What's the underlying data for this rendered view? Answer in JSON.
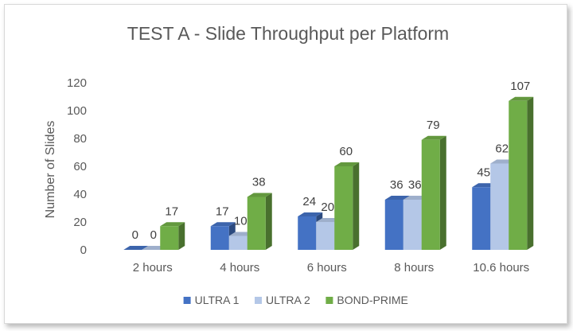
{
  "chart_data": {
    "type": "bar",
    "title": "TEST A - Slide Throughput per Platform",
    "xlabel": "",
    "ylabel": "Number of Slides",
    "categories": [
      "2 hours",
      "4 hours",
      "6 hours",
      "8 hours",
      "10.6 hours"
    ],
    "yticks": [
      "0",
      "20",
      "40",
      "60",
      "80",
      "100",
      "120"
    ],
    "ylim": [
      0,
      120
    ],
    "grid": false,
    "legend_position": "bottom",
    "series": [
      {
        "name": "ULTRA 1",
        "color": "#4472c4",
        "values": [
          0,
          17,
          24,
          36,
          45
        ],
        "labels": [
          "0",
          "17",
          "24",
          "36",
          "45"
        ]
      },
      {
        "name": "ULTRA 2",
        "color": "#b4c7e7",
        "values": [
          0,
          10,
          20,
          36,
          62
        ],
        "labels": [
          "0",
          "10",
          "20",
          "36",
          "62"
        ]
      },
      {
        "name": "BOND-PRIME",
        "color": "#70ad47",
        "values": [
          17,
          38,
          60,
          79,
          107
        ],
        "labels": [
          "17",
          "38",
          "60",
          "79",
          "107"
        ]
      }
    ]
  }
}
